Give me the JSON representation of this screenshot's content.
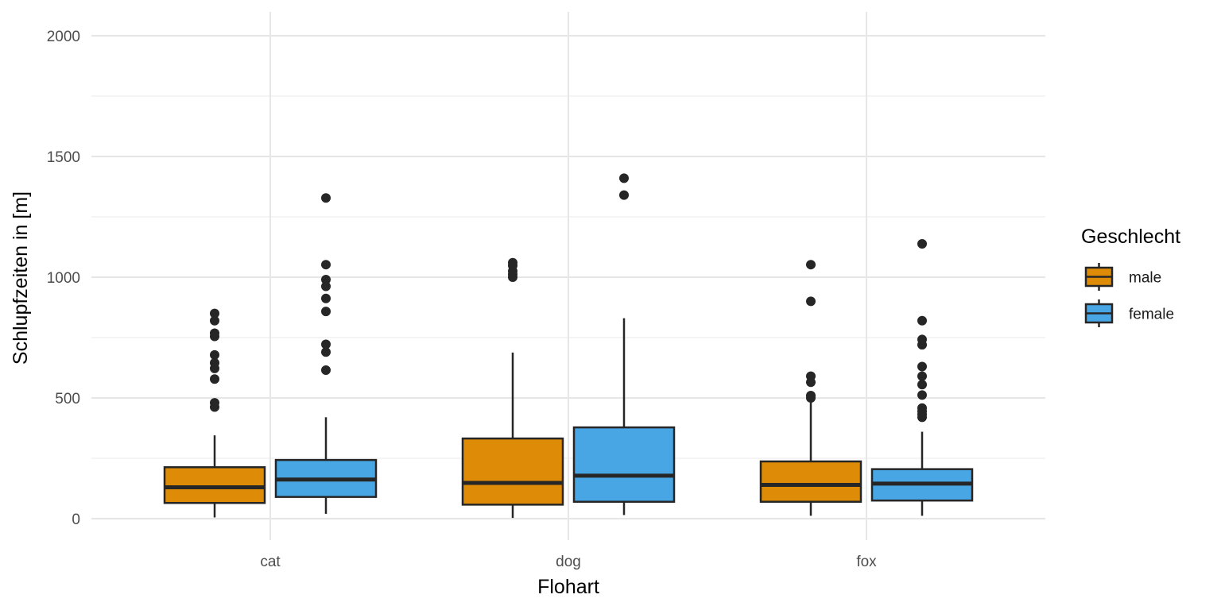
{
  "chart_data": {
    "type": "boxplot",
    "xlabel": "Flohart",
    "ylabel": "Schlupfzeiten in [m]",
    "ylim": [
      -60,
      2100
    ],
    "y_ticks": [
      0,
      500,
      1000,
      1500,
      2000
    ],
    "y_minor_ticks": [
      250,
      750,
      1250,
      1750
    ],
    "categories": [
      "cat",
      "dog",
      "fox"
    ],
    "grid": true,
    "legend": {
      "title": "Geschlecht",
      "placement": "right",
      "entries": [
        {
          "label": "male",
          "color": "#DE8C07"
        },
        {
          "label": "female",
          "color": "#49A6E4"
        }
      ]
    },
    "series": [
      {
        "name": "male",
        "color": "#DE8C07",
        "boxes": [
          {
            "category": "cat",
            "whisker_low": 5,
            "q1": 65,
            "median": 130,
            "q3": 213,
            "whisker_high": 345,
            "outliers": [
              462,
              480,
              578,
              622,
              645,
              678,
              755,
              768,
              820,
              850
            ]
          },
          {
            "category": "dog",
            "whisker_low": 3,
            "q1": 58,
            "median": 148,
            "q3": 332,
            "whisker_high": 688,
            "outliers": [
              1000,
              1012,
              1025,
              1048,
              1060
            ]
          },
          {
            "category": "fox",
            "whisker_low": 12,
            "q1": 70,
            "median": 140,
            "q3": 237,
            "whisker_high": 492,
            "outliers": [
              500,
              510,
              565,
              590,
              900,
              1052
            ]
          }
        ]
      },
      {
        "name": "female",
        "color": "#49A6E4",
        "boxes": [
          {
            "category": "cat",
            "whisker_low": 20,
            "q1": 90,
            "median": 162,
            "q3": 243,
            "whisker_high": 420,
            "outliers": [
              615,
              690,
              722,
              858,
              912,
              962,
              990,
              1052,
              1328
            ]
          },
          {
            "category": "dog",
            "whisker_low": 15,
            "q1": 70,
            "median": 178,
            "q3": 378,
            "whisker_high": 830,
            "outliers": [
              1340,
              1410
            ]
          },
          {
            "category": "fox",
            "whisker_low": 12,
            "q1": 75,
            "median": 145,
            "q3": 205,
            "whisker_high": 360,
            "outliers": [
              420,
              432,
              445,
              458,
              512,
              555,
              590,
              630,
              720,
              742,
              820,
              1138
            ]
          }
        ]
      }
    ]
  }
}
